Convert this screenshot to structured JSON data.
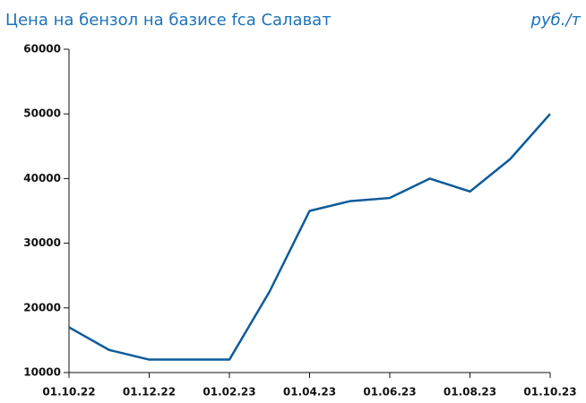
{
  "chart_data": {
    "type": "line",
    "title": "Цена на бензол на базисе fca Салават",
    "unit_label": "руб./т",
    "categories": [
      "01.10.22",
      null,
      "01.12.22",
      null,
      "01.02.23",
      null,
      "01.04.23",
      null,
      "01.06.23",
      null,
      "01.08.23",
      null,
      "01.10.23"
    ],
    "series": [
      {
        "name": "Цена",
        "color": "#0d5b9a",
        "values": [
          17000,
          13500,
          12000,
          12000,
          12000,
          22500,
          35000,
          36500,
          37000,
          40000,
          38000,
          43000,
          50000
        ]
      }
    ],
    "ylim": [
      10000,
      60000
    ],
    "yticks": [
      10000,
      20000,
      30000,
      40000,
      50000,
      60000
    ],
    "grid": false,
    "legend": false
  }
}
